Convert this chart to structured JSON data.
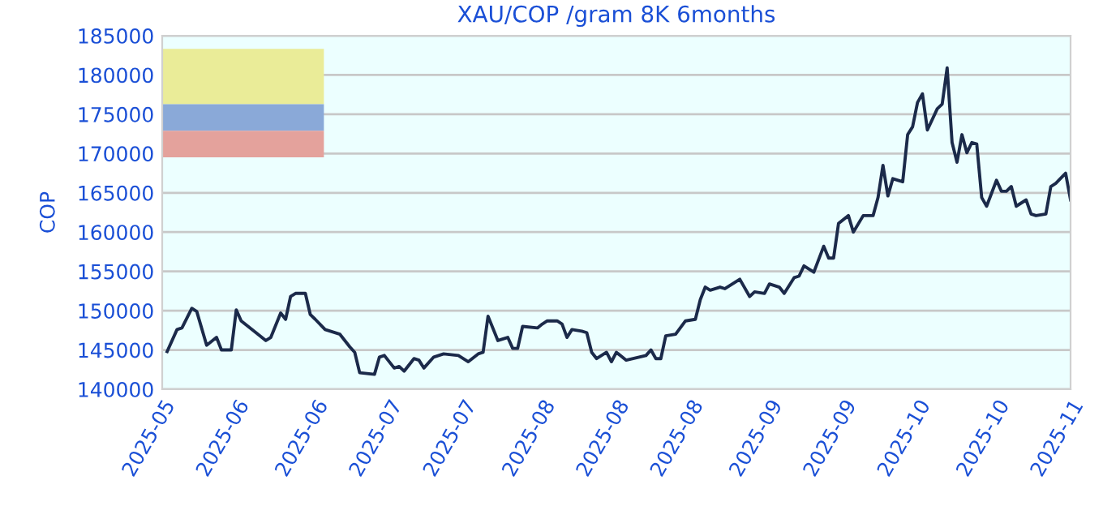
{
  "chart_data": {
    "type": "line",
    "title": "XAU/COP /gram 8K 6months",
    "ylabel": "COP",
    "x": [
      "2025-05-06",
      "2025-05-08",
      "2025-05-09",
      "2025-05-11",
      "2025-05-12",
      "2025-05-14",
      "2025-05-16",
      "2025-05-17",
      "2025-05-19",
      "2025-05-20",
      "2025-05-21",
      "2025-05-24",
      "2025-05-26",
      "2025-05-27",
      "2025-05-29",
      "2025-05-30",
      "2025-05-31",
      "2025-06-01",
      "2025-06-03",
      "2025-06-04",
      "2025-06-05",
      "2025-06-07",
      "2025-06-10",
      "2025-06-12",
      "2025-06-13",
      "2025-06-14",
      "2025-06-17",
      "2025-06-18",
      "2025-06-19",
      "2025-06-21",
      "2025-06-22",
      "2025-06-23",
      "2025-06-25",
      "2025-06-26",
      "2025-06-27",
      "2025-06-29",
      "2025-07-01",
      "2025-07-04",
      "2025-07-06",
      "2025-07-08",
      "2025-07-09",
      "2025-07-10",
      "2025-07-12",
      "2025-07-14",
      "2025-07-15",
      "2025-07-16",
      "2025-07-17",
      "2025-07-20",
      "2025-07-21",
      "2025-07-22",
      "2025-07-24",
      "2025-07-25",
      "2025-07-26",
      "2025-07-27",
      "2025-07-29",
      "2025-07-30",
      "2025-07-31",
      "2025-08-01",
      "2025-08-03",
      "2025-08-04",
      "2025-08-05",
      "2025-08-07",
      "2025-08-11",
      "2025-08-12",
      "2025-08-13",
      "2025-08-14",
      "2025-08-15",
      "2025-08-17",
      "2025-08-19",
      "2025-08-21",
      "2025-08-22",
      "2025-08-23",
      "2025-08-24",
      "2025-08-26",
      "2025-08-27",
      "2025-08-30",
      "2025-09-01",
      "2025-09-02",
      "2025-09-04",
      "2025-09-05",
      "2025-09-07",
      "2025-09-08",
      "2025-09-10",
      "2025-09-11",
      "2025-09-12",
      "2025-09-14",
      "2025-09-16",
      "2025-09-17",
      "2025-09-18",
      "2025-09-19",
      "2025-09-21",
      "2025-09-22",
      "2025-09-24",
      "2025-09-26",
      "2025-09-27",
      "2025-09-28",
      "2025-09-29",
      "2025-09-30",
      "2025-10-02",
      "2025-10-03",
      "2025-10-04",
      "2025-10-05",
      "2025-10-06",
      "2025-10-07",
      "2025-10-09",
      "2025-10-10",
      "2025-10-11",
      "2025-10-12",
      "2025-10-13",
      "2025-10-14",
      "2025-10-15",
      "2025-10-16",
      "2025-10-17",
      "2025-10-18",
      "2025-10-19",
      "2025-10-21",
      "2025-10-22",
      "2025-10-23",
      "2025-10-24",
      "2025-10-25",
      "2025-10-27",
      "2025-10-28",
      "2025-10-29",
      "2025-10-31",
      "2025-11-01",
      "2025-11-02",
      "2025-11-04",
      "2025-11-05"
    ],
    "series": [
      {
        "color": "#1b2a4a",
        "values": [
          144800,
          147600,
          147800,
          150300,
          149900,
          145600,
          146600,
          145000,
          145000,
          150100,
          148700,
          147200,
          146200,
          146600,
          149700,
          148900,
          151800,
          152200,
          152200,
          149500,
          148900,
          147600,
          147000,
          145400,
          144700,
          142100,
          141900,
          144100,
          144300,
          142700,
          142900,
          142300,
          143900,
          143700,
          142700,
          144100,
          144500,
          144300,
          143500,
          144500,
          144700,
          149300,
          146200,
          146600,
          145200,
          145200,
          148000,
          147800,
          148300,
          148700,
          148700,
          148300,
          146600,
          147600,
          147400,
          147200,
          144700,
          143900,
          144700,
          143500,
          144700,
          143700,
          144300,
          145000,
          143900,
          143900,
          146800,
          147000,
          148700,
          148900,
          151400,
          153000,
          152600,
          153000,
          152800,
          154000,
          151800,
          152400,
          152200,
          153400,
          153000,
          152200,
          154200,
          154400,
          155700,
          154900,
          158200,
          156700,
          156700,
          161100,
          162100,
          160000,
          162100,
          162100,
          164400,
          168500,
          164600,
          166800,
          166400,
          172400,
          173400,
          176500,
          177600,
          173000,
          175700,
          176300,
          180900,
          171400,
          168900,
          172400,
          170100,
          171400,
          171200,
          164400,
          163300,
          166600,
          165200,
          165200,
          165800,
          163300,
          164100,
          162300,
          162100,
          162300,
          165800,
          166200,
          167500,
          164100
        ]
      }
    ],
    "xlim": [
      "2025-05-05",
      "2025-11-05"
    ],
    "xticks": [
      {
        "value": "2025-05-05",
        "label": "2025-05"
      },
      {
        "value": "2025-05-20",
        "label": "2025-06"
      },
      {
        "value": "2025-06-05",
        "label": "2025-06"
      },
      {
        "value": "2025-06-20",
        "label": "2025-07"
      },
      {
        "value": "2025-07-05",
        "label": "2025-07"
      },
      {
        "value": "2025-07-21",
        "label": "2025-08"
      },
      {
        "value": "2025-08-05",
        "label": "2025-08"
      },
      {
        "value": "2025-08-20",
        "label": "2025-08"
      },
      {
        "value": "2025-09-05",
        "label": "2025-09"
      },
      {
        "value": "2025-09-20",
        "label": "2025-09"
      },
      {
        "value": "2025-10-05",
        "label": "2025-10"
      },
      {
        "value": "2025-10-21",
        "label": "2025-10"
      },
      {
        "value": "2025-11-05",
        "label": "2025-11"
      }
    ],
    "ylim": [
      140000,
      185000
    ],
    "yticks": [
      140000,
      145000,
      150000,
      155000,
      160000,
      165000,
      170000,
      175000,
      180000,
      185000
    ],
    "grid": "y",
    "legend": false,
    "marker": "none",
    "line_style": "solid"
  }
}
